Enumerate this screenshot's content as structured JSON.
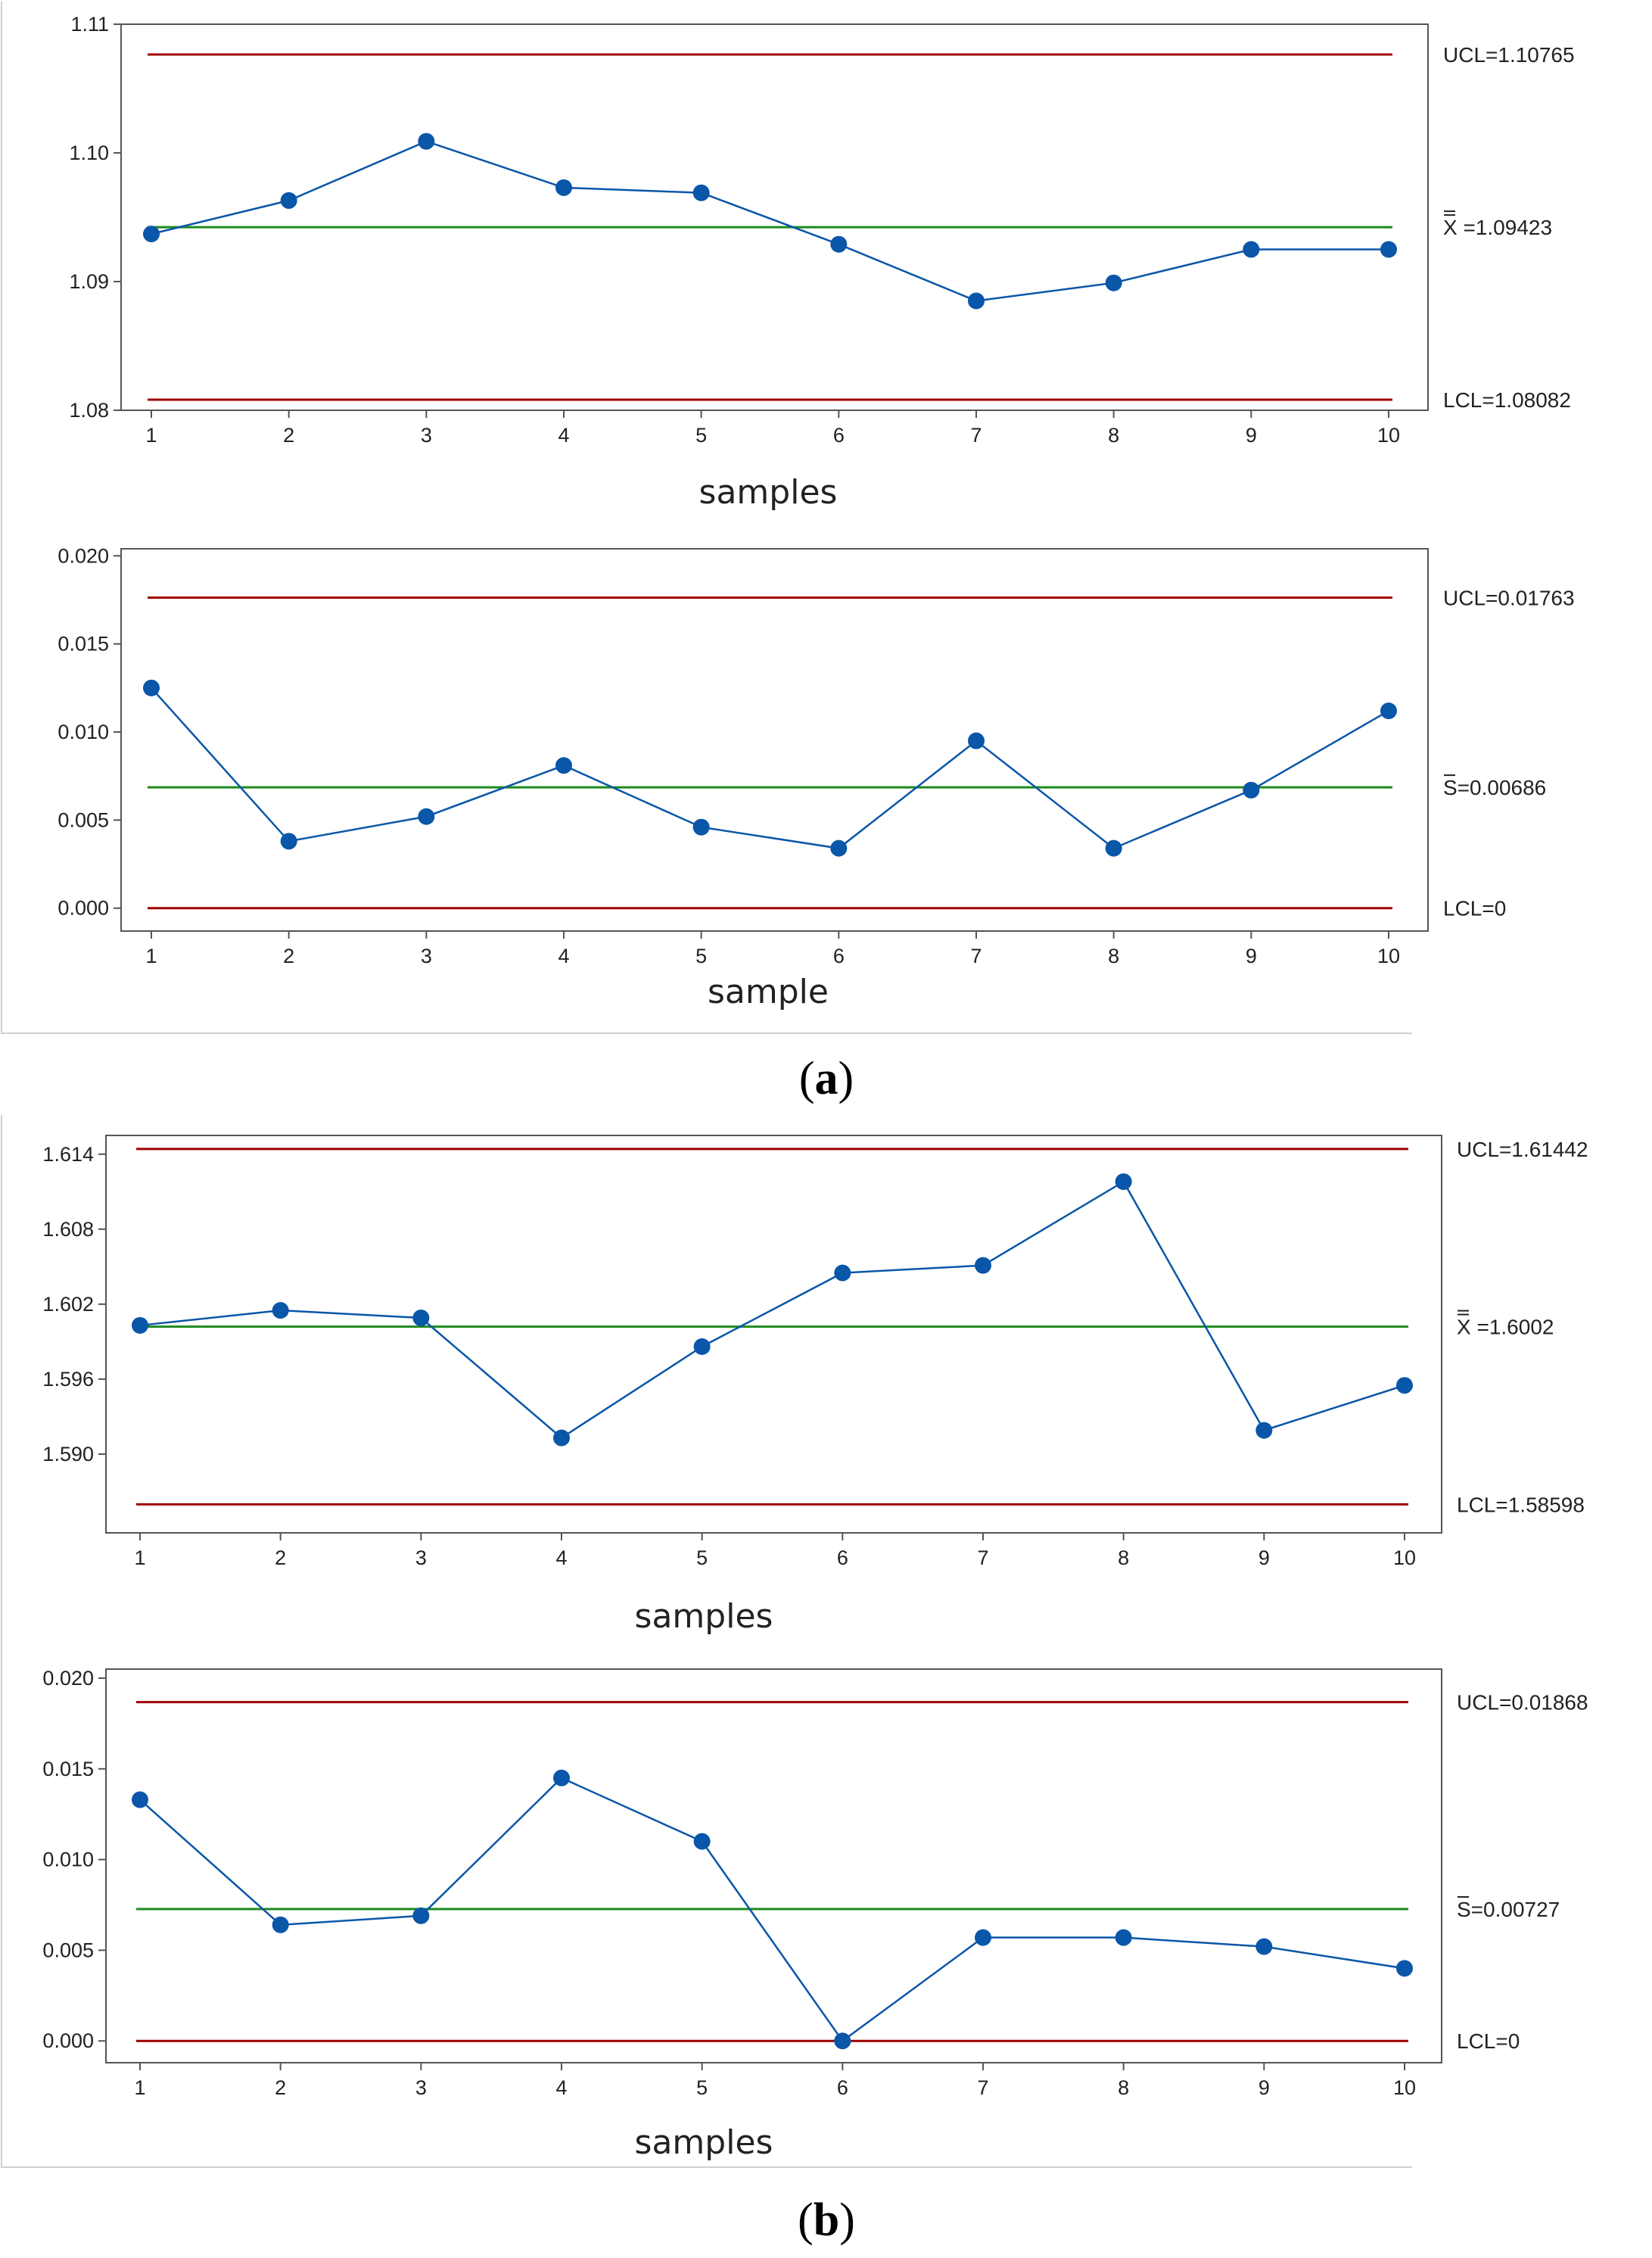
{
  "colors": {
    "limit": "#a00000",
    "center": "#1e8a1e",
    "series": "#0a56a8",
    "frame": "#555555",
    "panelBorder": "#d0d0d0"
  },
  "figure": {
    "panel_a": {
      "caption_open": "(",
      "caption_letter": "a",
      "caption_close": ")"
    },
    "panel_b": {
      "caption_open": "(",
      "caption_letter": "b",
      "caption_close": ")"
    }
  },
  "chart_data": [
    {
      "id": "a-xbar",
      "type": "line",
      "xlabel": "samples",
      "categories": [
        "1",
        "2",
        "3",
        "4",
        "5",
        "6",
        "7",
        "8",
        "9",
        "10"
      ],
      "values": [
        1.0937,
        1.0963,
        1.1009,
        1.0973,
        1.0969,
        1.0929,
        1.0885,
        1.0899,
        1.0925,
        1.0925
      ],
      "ylim": [
        1.08,
        1.11
      ],
      "yticks": [
        "1.080",
        "1.090",
        "1.100",
        "1.110"
      ],
      "ytick_labels": [
        "1.08",
        "1.09",
        "1.10",
        "1.11"
      ],
      "ucl": 1.10765,
      "cl": 1.09423,
      "lcl": 1.08082,
      "ucl_label": "UCL=1.10765",
      "cl_symbol": "X",
      "cl_label": " =1.09423",
      "lcl_label": "LCL=1.08082"
    },
    {
      "id": "a-s",
      "type": "line",
      "xlabel": "sample",
      "categories": [
        "1",
        "2",
        "3",
        "4",
        "5",
        "6",
        "7",
        "8",
        "9",
        "10"
      ],
      "values": [
        0.0125,
        0.0038,
        0.0052,
        0.0081,
        0.0046,
        0.0034,
        0.0095,
        0.0034,
        0.0067,
        0.0112
      ],
      "ylim": [
        -0.0013,
        0.0204
      ],
      "yticks": [
        "0",
        "0.005",
        "0.010",
        "0.015",
        "0.020"
      ],
      "ytick_labels": [
        "0.000",
        "0.005",
        "0.010",
        "0.015",
        "0.020"
      ],
      "ucl": 0.01763,
      "cl": 0.00686,
      "lcl": 0,
      "ucl_label": "UCL=0.01763",
      "cl_symbol": "S",
      "cl_label": "=0.00686",
      "lcl_label": "LCL=0"
    },
    {
      "id": "b-xbar",
      "type": "line",
      "xlabel": "samples",
      "categories": [
        "1",
        "2",
        "3",
        "4",
        "5",
        "6",
        "7",
        "8",
        "9",
        "10"
      ],
      "values": [
        1.6003,
        1.6015,
        1.6009,
        1.5913,
        1.5986,
        1.6045,
        1.6051,
        1.6118,
        1.5919,
        1.5955
      ],
      "ylim": [
        1.5837,
        1.6155
      ],
      "yticks": [
        "1.590",
        "1.596",
        "1.602",
        "1.608",
        "1.614"
      ],
      "ytick_labels": [
        "1.590",
        "1.596",
        "1.602",
        "1.608",
        "1.614"
      ],
      "ucl": 1.61442,
      "cl": 1.6002,
      "lcl": 1.58598,
      "ucl_label": "UCL=1.61442",
      "cl_symbol": "X",
      "cl_label": " =1.6002",
      "lcl_label": "LCL=1.58598"
    },
    {
      "id": "b-s",
      "type": "line",
      "xlabel": "samples",
      "categories": [
        "1",
        "2",
        "3",
        "4",
        "5",
        "6",
        "7",
        "8",
        "9",
        "10"
      ],
      "values": [
        0.0133,
        0.0064,
        0.0069,
        0.0145,
        0.011,
        0.0,
        0.0057,
        0.0057,
        0.0052,
        0.004
      ],
      "ylim": [
        -0.0012,
        0.0205
      ],
      "yticks": [
        "0",
        "0.005",
        "0.010",
        "0.015",
        "0.020"
      ],
      "ytick_labels": [
        "0.000",
        "0.005",
        "0.010",
        "0.015",
        "0.020"
      ],
      "ucl": 0.01868,
      "cl": 0.00727,
      "lcl": 0,
      "ucl_label": "UCL=0.01868",
      "cl_symbol": "S",
      "cl_label": "=0.00727",
      "lcl_label": "LCL=0"
    }
  ]
}
